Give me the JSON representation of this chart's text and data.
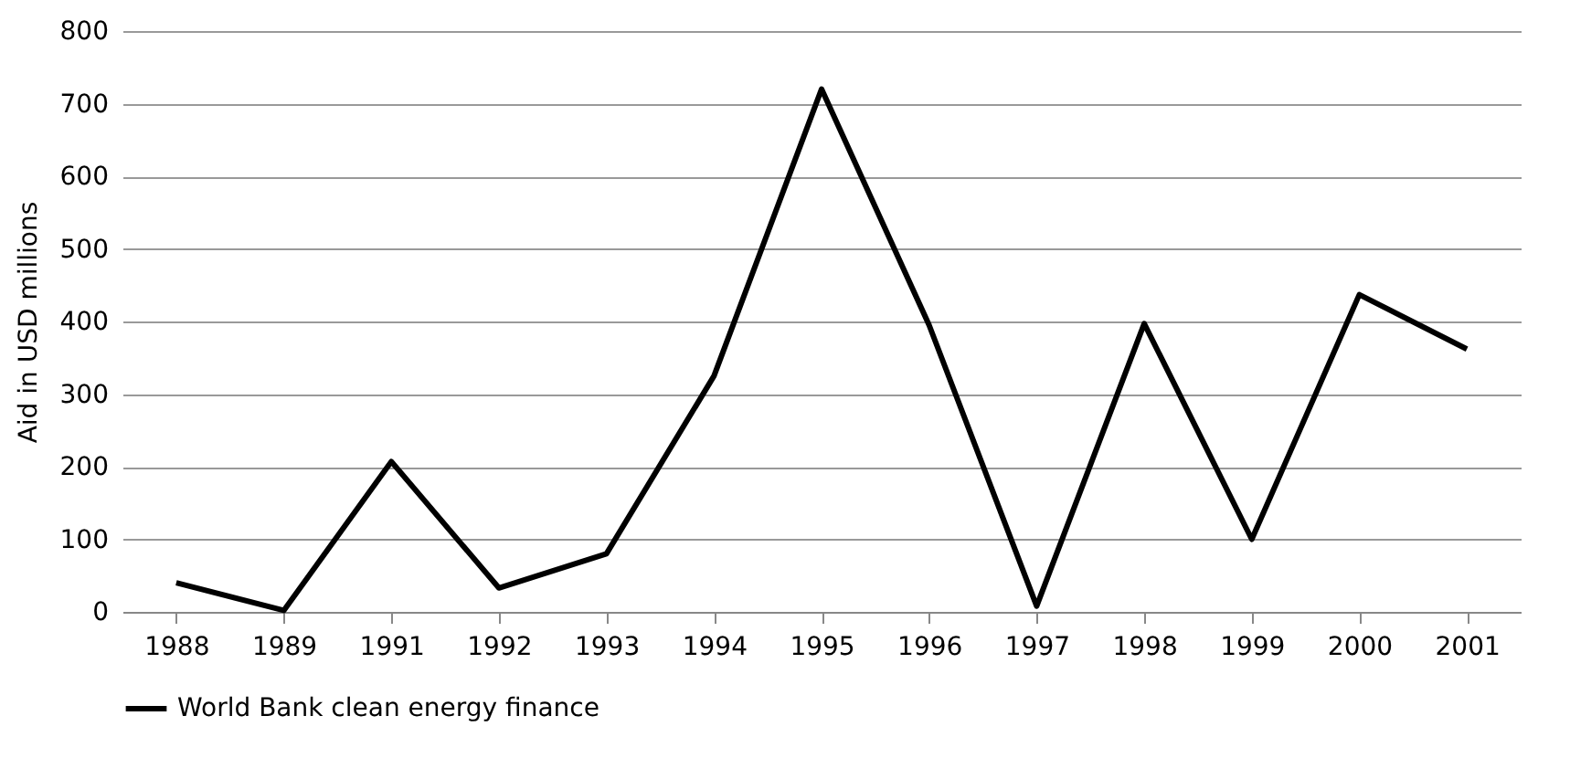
{
  "chart_data": {
    "type": "line",
    "ylabel": "Aid in USD millions",
    "categories": [
      "1988",
      "1989",
      "1991",
      "1992",
      "1993",
      "1994",
      "1995",
      "1996",
      "1997",
      "1998",
      "1999",
      "2000",
      "2001"
    ],
    "series": [
      {
        "name": "World Bank clean energy finance",
        "color": "#000000",
        "values": [
          40,
          2,
          207,
          33,
          80,
          325,
          720,
          395,
          8,
          397,
          100,
          437,
          362
        ]
      }
    ],
    "ylim": [
      0,
      800
    ],
    "yticks": [
      0,
      100,
      200,
      300,
      400,
      500,
      600,
      700,
      800
    ],
    "grid": "y",
    "legend": "bottom",
    "marker": "none",
    "line_style": "solid"
  }
}
